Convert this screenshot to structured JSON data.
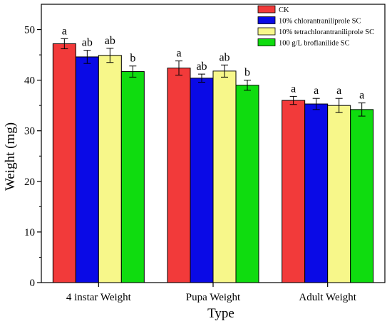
{
  "chart_data": {
    "type": "bar",
    "xlabel": "Type",
    "ylabel": "Weight (mg)",
    "ylim": [
      0,
      55
    ],
    "yticks": [
      0,
      10,
      20,
      30,
      40,
      50
    ],
    "categories": [
      "4 instar Weight",
      "Pupa Weight",
      "Adult Weight"
    ],
    "legend_position": "top-right",
    "series": [
      {
        "name": "CK",
        "color": "#f23a3a",
        "values": [
          47.2,
          42.4,
          36.0
        ],
        "errors": [
          1.0,
          1.4,
          0.8
        ],
        "labels": [
          "a",
          "a",
          "a"
        ]
      },
      {
        "name": "10% chlorantraniliprole SC",
        "color": "#0a0ae6",
        "values": [
          44.6,
          40.4,
          35.3
        ],
        "errors": [
          1.3,
          0.8,
          1.1
        ],
        "labels": [
          "ab",
          "ab",
          "a"
        ]
      },
      {
        "name": "10% tetrachlorantraniliprole SC",
        "color": "#f7f78a",
        "values": [
          44.9,
          41.8,
          35.0
        ],
        "errors": [
          1.4,
          1.2,
          1.4
        ],
        "labels": [
          "ab",
          "ab",
          "a"
        ]
      },
      {
        "name": "100 g/L broflanilide SC",
        "color": "#0fdc0f",
        "values": [
          41.7,
          39.0,
          34.2
        ],
        "errors": [
          1.1,
          1.0,
          1.3
        ],
        "labels": [
          "b",
          "b",
          "a"
        ]
      }
    ]
  }
}
